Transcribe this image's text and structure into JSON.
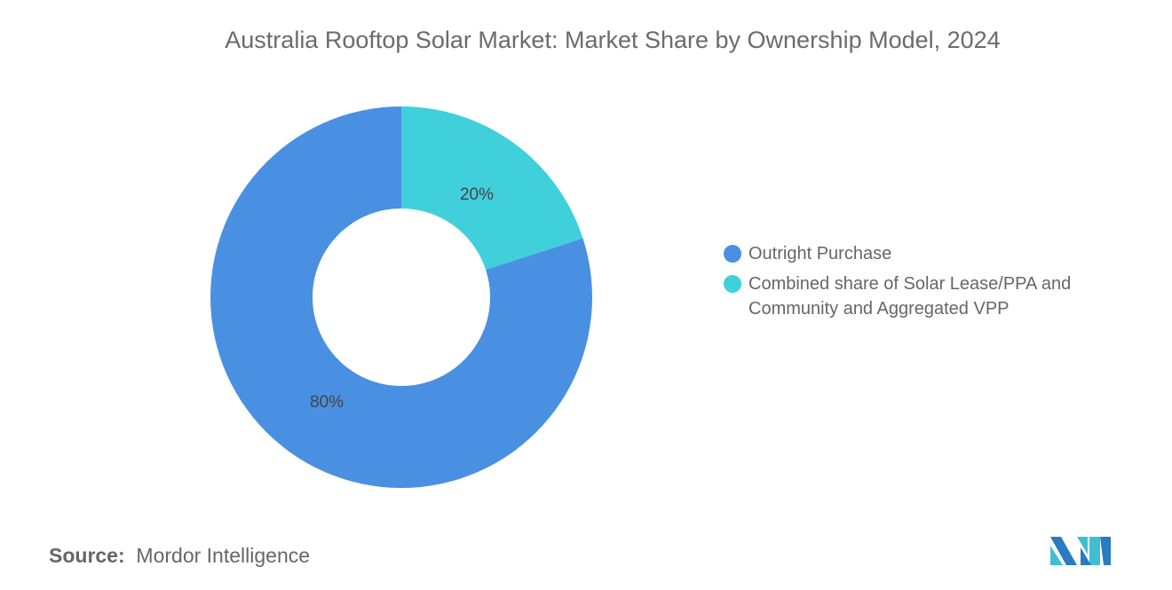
{
  "chart_data": {
    "type": "pie",
    "title": "Australia Rooftop Solar Market: Market Share by Ownership Model, 2024",
    "donut": true,
    "categories": [
      "Outright Purchase",
      "Combined share of Solar Lease/PPA and Community and Aggregated VPP"
    ],
    "values": [
      80,
      20
    ],
    "data_labels": [
      "80%",
      "20%"
    ],
    "colors": [
      "#4a90e2",
      "#40d0db"
    ],
    "legend_position": "right"
  },
  "legend": {
    "items": [
      {
        "line1": "Outright Purchase",
        "line2": ""
      },
      {
        "line1": "Combined share of Solar Lease/PPA and",
        "line2": "Community and Aggregated VPP"
      }
    ]
  },
  "source": {
    "label": "Source:",
    "value": "Mordor Intelligence"
  },
  "logo": {
    "text": "MI"
  }
}
